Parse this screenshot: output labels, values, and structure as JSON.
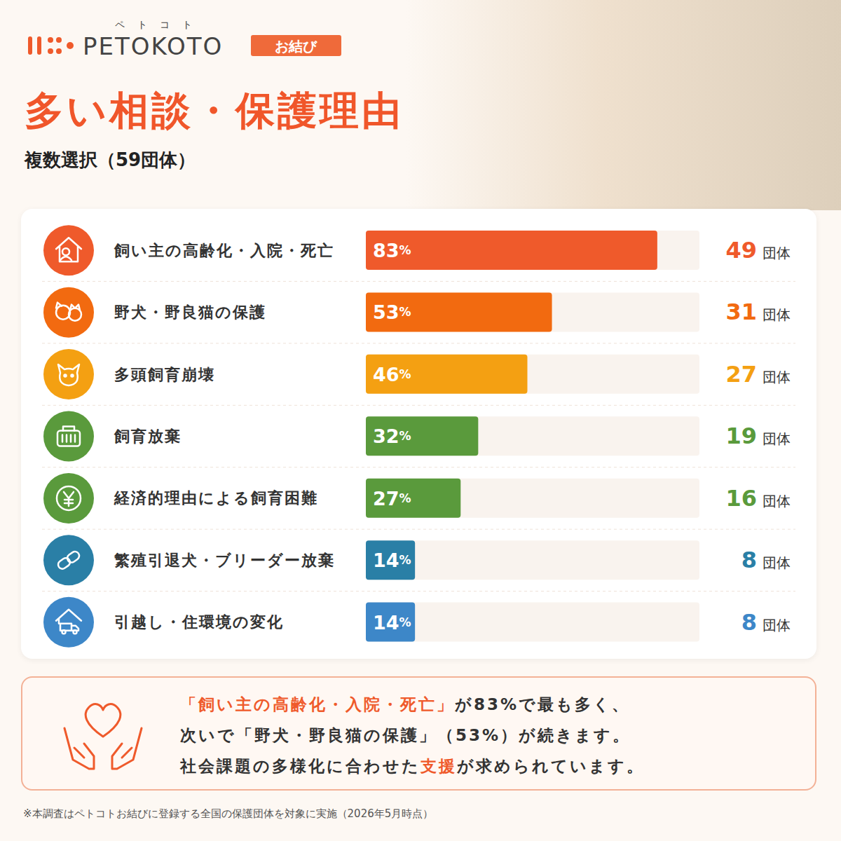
{
  "header": {
    "brand": "PETOKOTO",
    "brand_ruby": "ペトコト",
    "badge": "お結び"
  },
  "chart_data": {
    "type": "bar",
    "orientation": "horizontal",
    "title": "多い相談・保護理由",
    "subtitle": "複数選択（59団体）",
    "categories": [
      "飼い主の高齢化・入院・死亡",
      "野犬・野良猫の保護",
      "多頭飼育崩壊",
      "飼育放棄",
      "経済的理由による飼育困難",
      "繁殖引退犬・ブリーダー放棄",
      "引越し・住環境の変化"
    ],
    "values": [
      83,
      53,
      46,
      32,
      27,
      14,
      14
    ],
    "value_labels": [
      "83%",
      "53%",
      "46%",
      "32%",
      "27%",
      "14%",
      "14%"
    ],
    "counts": [
      49,
      31,
      27,
      19,
      16,
      8,
      8
    ],
    "count_unit": "団体",
    "colors": [
      "#ef5a2b",
      "#f26a10",
      "#f4a012",
      "#5a9a3c",
      "#5a9a3c",
      "#2a7fa6",
      "#3d87c8"
    ],
    "xlim": [
      0,
      95
    ],
    "tick_labels": false,
    "data_labels": true
  },
  "summary": {
    "lines": [
      "「飼い主の高齢化・入院・死亡」が83%で最も多く、",
      "次いで「野犬・野良猫の保護」（53%）が続きます。",
      "社会課題の多様化に合わせた支援が求められています。"
    ],
    "highlights": [
      "「飼い主の高齢化・入院・死亡」",
      "支援"
    ]
  },
  "footnote": "※本調査はペトコトお結びに登録する全国の保護団体を対象に実施（2026年5月時点）"
}
